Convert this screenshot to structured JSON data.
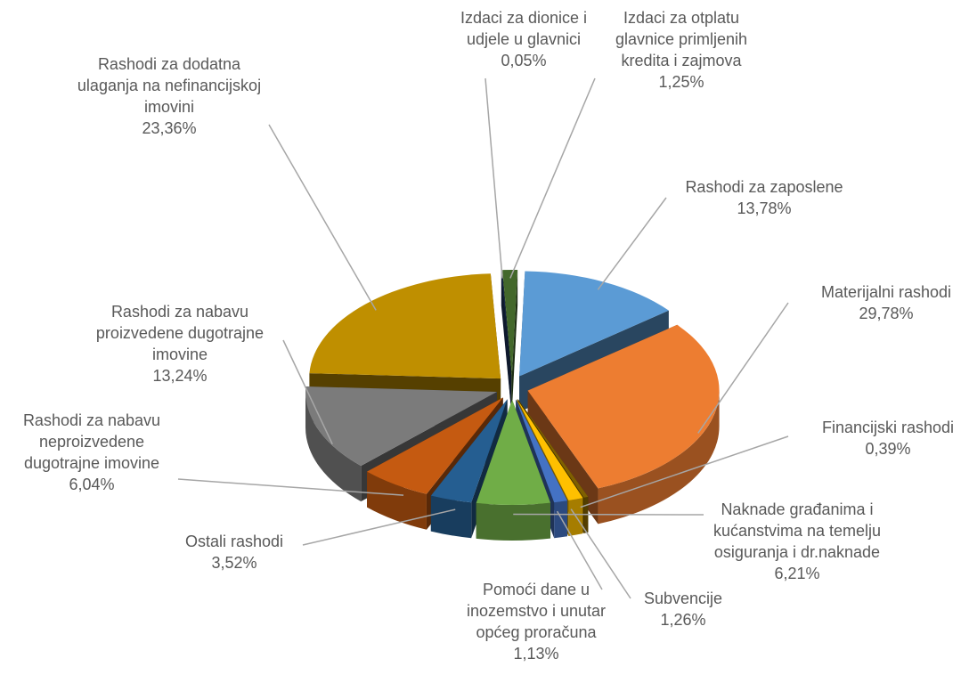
{
  "chart_data": {
    "type": "pie3d",
    "categories": [
      "Izdaci za dionice i udjele u glavnici",
      "Izdaci za otplatu glavnice primljenih kredita i zajmova",
      "Rashodi za zaposlene",
      "Materijalni rashodi",
      "Financijski rashodi",
      "Subvencije",
      "Pomoći dane u inozemstvo i unutar općeg proračuna",
      "Naknade građanima i kućanstvima na temelju osiguranja i dr.naknade",
      "Ostali rashodi",
      "Rashodi za nabavu neproizvedene dugotrajne imovine",
      "Rashodi za nabavu proizvedene dugotrajne imovine",
      "Rashodi za dodatna ulaganja na nefinancijskoj imovini"
    ],
    "values": [
      0.05,
      1.25,
      13.78,
      29.78,
      0.39,
      1.26,
      1.13,
      6.21,
      3.52,
      6.04,
      13.24,
      23.36
    ],
    "value_labels": [
      "0,05%",
      "1,25%",
      "13,78%",
      "29,78%",
      "0,39%",
      "1,26%",
      "1,13%",
      "6,21%",
      "3,52%",
      "6,04%",
      "13,24%",
      "23,36%"
    ],
    "colors": [
      "#1f3864",
      "#43682b",
      "#5b9bd5",
      "#ed7d31",
      "#7f6000",
      "#ffc000",
      "#4472c4",
      "#70ad47",
      "#255e91",
      "#c55a11",
      "#7b7b7b",
      "#bf8f00"
    ]
  }
}
